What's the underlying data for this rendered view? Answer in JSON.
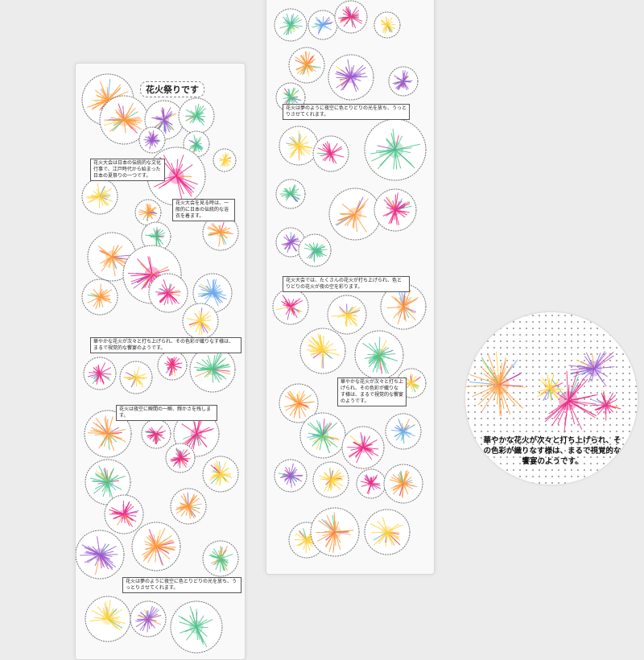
{
  "left_sheet": {
    "title": "花火祭りです",
    "notes": [
      "花火大会は日本の伝統的な文化行事で、江戸時代から始まった日本の夏祭りの一つです。",
      "花火大会を見る時は、一般的に日本の伝統的な浴衣を着ます。",
      "華やかな花火が次々と打ち上げられ、その色彩が織りなす様は、まるで視覚的な饗宴のようです。",
      "花火は夜空に瞬間の一瞬、輝かさを残します。",
      "花火は夢のように夜空に色とりどりの光を放ち、うっとりさせてくれます。"
    ]
  },
  "right_sheet": {
    "notes": [
      "花火は夢のように夜空に色とりどりの光を放ち、うっとりさせてくれます。",
      "花火大会では、たくさんの花火が打ち上げられ、色とりどりの花火が夜の空を彩ります。",
      "華やかな花火が次々と打ち上げられ、その色彩が織りなす様は、まるで視覚的な饗宴のようです。"
    ]
  },
  "zoom_detail": {
    "text": "華やかな花火が次々と打ち上げられ、その色彩が織りなす様は、まるで視覚的な饗宴のようです。"
  },
  "colors": {
    "orange": "#ff9a3c",
    "pink": "#ee2a86",
    "yellow": "#ffd23a",
    "green": "#4cc48a",
    "purple": "#9a5ad0",
    "blue": "#6aa8f0"
  }
}
